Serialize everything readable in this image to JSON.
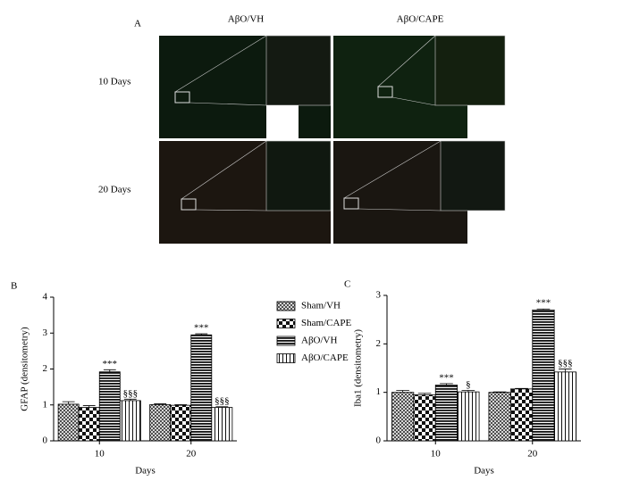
{
  "panel_a": {
    "label": "A",
    "columns": [
      "AβO/VH",
      "AβO/CAPE"
    ],
    "rows": [
      "10 Days",
      "20 Days"
    ]
  },
  "chart_data": [
    {
      "type": "bar",
      "label": "B",
      "ylabel": "GFAP (densitometry)",
      "xlabel": "Days",
      "categories": [
        "10",
        "20"
      ],
      "ylim": [
        0,
        4
      ],
      "yticks": [
        0,
        1,
        2,
        3,
        4
      ],
      "legend": "right",
      "series": [
        {
          "name": "Sham/VH",
          "pattern": "crosshatch",
          "values": [
            1.02,
            1.01
          ],
          "errors": [
            0.07,
            0.02
          ]
        },
        {
          "name": "Sham/CAPE",
          "pattern": "checker",
          "values": [
            0.93,
            0.99
          ],
          "errors": [
            0.05,
            0.02
          ]
        },
        {
          "name": "AβO/VH",
          "pattern": "hstripes",
          "values": [
            1.92,
            2.95
          ],
          "errors": [
            0.06,
            0.03
          ],
          "annotations": [
            "***",
            "***"
          ]
        },
        {
          "name": "AβO/CAPE",
          "pattern": "vstripes",
          "values": [
            1.12,
            0.93
          ],
          "errors": [
            0.04,
            0.02
          ],
          "annotations": [
            "§§§",
            "§§§"
          ]
        }
      ]
    },
    {
      "type": "bar",
      "label": "C",
      "ylabel": "Iba1 (densitometry)",
      "xlabel": "Days",
      "categories": [
        "10",
        "20"
      ],
      "ylim": [
        0,
        3
      ],
      "yticks": [
        0,
        1,
        2,
        3
      ],
      "series": [
        {
          "name": "Sham/VH",
          "pattern": "crosshatch",
          "values": [
            1.0,
            1.0
          ],
          "errors": [
            0.04,
            0.01
          ]
        },
        {
          "name": "Sham/CAPE",
          "pattern": "checker",
          "values": [
            0.95,
            1.07
          ],
          "errors": [
            0.03,
            0.01
          ]
        },
        {
          "name": "AβO/VH",
          "pattern": "hstripes",
          "values": [
            1.15,
            2.7
          ],
          "errors": [
            0.03,
            0.02
          ],
          "annotations": [
            "***",
            "***"
          ]
        },
        {
          "name": "AβO/CAPE",
          "pattern": "vstripes",
          "values": [
            1.01,
            1.42
          ],
          "errors": [
            0.03,
            0.06
          ],
          "annotations": [
            "§",
            "§§§"
          ]
        }
      ]
    }
  ]
}
